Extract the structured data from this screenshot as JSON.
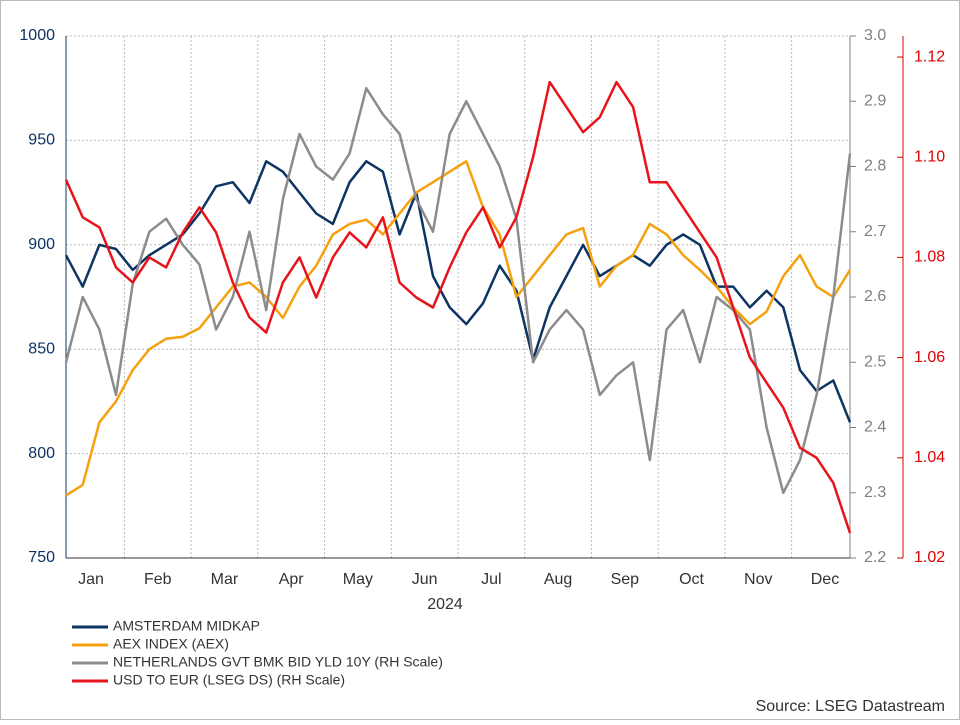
{
  "chart_data": {
    "type": "line",
    "categories": [
      null,
      null,
      "Jan",
      null,
      null,
      null,
      "Feb",
      null,
      null,
      null,
      "Mar",
      null,
      null,
      null,
      "Apr",
      null,
      null,
      null,
      "May",
      null,
      null,
      null,
      "Jun",
      null,
      null,
      null,
      "Jul",
      null,
      null,
      null,
      "Aug",
      null,
      null,
      null,
      "Sep",
      null,
      null,
      null,
      "Oct",
      null,
      null,
      null,
      "Nov",
      null,
      null,
      null,
      "Dec",
      null
    ],
    "xlabel": "2024",
    "ylim": [
      750,
      1000
    ],
    "yticks": [
      750,
      800,
      850,
      900,
      950,
      1000
    ],
    "y2lim": [
      2.2,
      3.0
    ],
    "y2ticks": [
      2.2,
      2.3,
      2.4,
      2.5,
      2.6,
      2.7,
      2.8,
      2.9,
      {
        "value": 3,
        "label": "3.0"
      }
    ],
    "y3lim": [
      1.02,
      1.1242
    ],
    "y3ticks": [
      1.02,
      1.04,
      1.06,
      1.08,
      {
        "value": 1.1,
        "label": "1.10"
      },
      1.12
    ],
    "grid": true,
    "axis_colors": {
      "y": "#0d3462",
      "y2": "#808080",
      "y3": "#e00000"
    },
    "series": [
      {
        "name": "AMSTERDAM MIDKAP",
        "color": "#0d3462",
        "axis": "y",
        "values": [
          895,
          880,
          900,
          898,
          888,
          895,
          900,
          905,
          915,
          928,
          930,
          920,
          940,
          935,
          925,
          915,
          910,
          930,
          940,
          935,
          905,
          925,
          885,
          870,
          862,
          872,
          890,
          878,
          845,
          870,
          885,
          900,
          885,
          890,
          895,
          890,
          900,
          905,
          900,
          880,
          880,
          870,
          878,
          870,
          840,
          830,
          835,
          815
        ]
      },
      {
        "name": "AEX INDEX (AEX)",
        "color": "#f5a10f",
        "axis": "y",
        "values": [
          780,
          785,
          815,
          825,
          840,
          850,
          855,
          856,
          860,
          870,
          880,
          882,
          875,
          865,
          880,
          890,
          905,
          910,
          912,
          905,
          915,
          925,
          930,
          935,
          940,
          918,
          905,
          875,
          885,
          895,
          905,
          908,
          880,
          890,
          895,
          910,
          905,
          895,
          888,
          880,
          870,
          862,
          868,
          885,
          895,
          880,
          875,
          888
        ]
      },
      {
        "name": "NETHERLANDS GVT BMK BID YLD 10Y (RH Scale)",
        "color": "#8c8c8c",
        "axis": "y2",
        "values": [
          2.5,
          2.6,
          2.55,
          2.45,
          2.62,
          2.7,
          2.72,
          2.68,
          2.65,
          2.55,
          2.6,
          2.7,
          2.58,
          2.75,
          2.85,
          2.8,
          2.78,
          2.82,
          2.92,
          2.88,
          2.85,
          2.75,
          2.7,
          2.85,
          2.9,
          2.85,
          2.8,
          2.72,
          2.5,
          2.55,
          2.58,
          2.55,
          2.45,
          2.48,
          2.5,
          2.35,
          2.55,
          2.58,
          2.5,
          2.6,
          2.58,
          2.55,
          2.4,
          2.3,
          2.35,
          2.45,
          2.6,
          2.82
        ]
      },
      {
        "name": "USD TO EUR (LSEG DS) (RH Scale)",
        "color": "#e8141b",
        "axis": "y3",
        "values": [
          1.0955,
          1.088,
          1.086,
          1.078,
          1.075,
          1.08,
          1.078,
          1.085,
          1.09,
          1.085,
          1.075,
          1.068,
          1.065,
          1.075,
          1.08,
          1.072,
          1.08,
          1.085,
          1.082,
          1.088,
          1.075,
          1.072,
          1.07,
          1.078,
          1.085,
          1.09,
          1.082,
          1.088,
          1.1,
          1.115,
          1.11,
          1.105,
          1.108,
          1.115,
          1.11,
          1.095,
          1.095,
          1.09,
          1.085,
          1.08,
          1.07,
          1.06,
          1.055,
          1.05,
          1.042,
          1.04,
          1.035,
          1.025
        ]
      }
    ],
    "source": "Source: LSEG Datastream"
  }
}
